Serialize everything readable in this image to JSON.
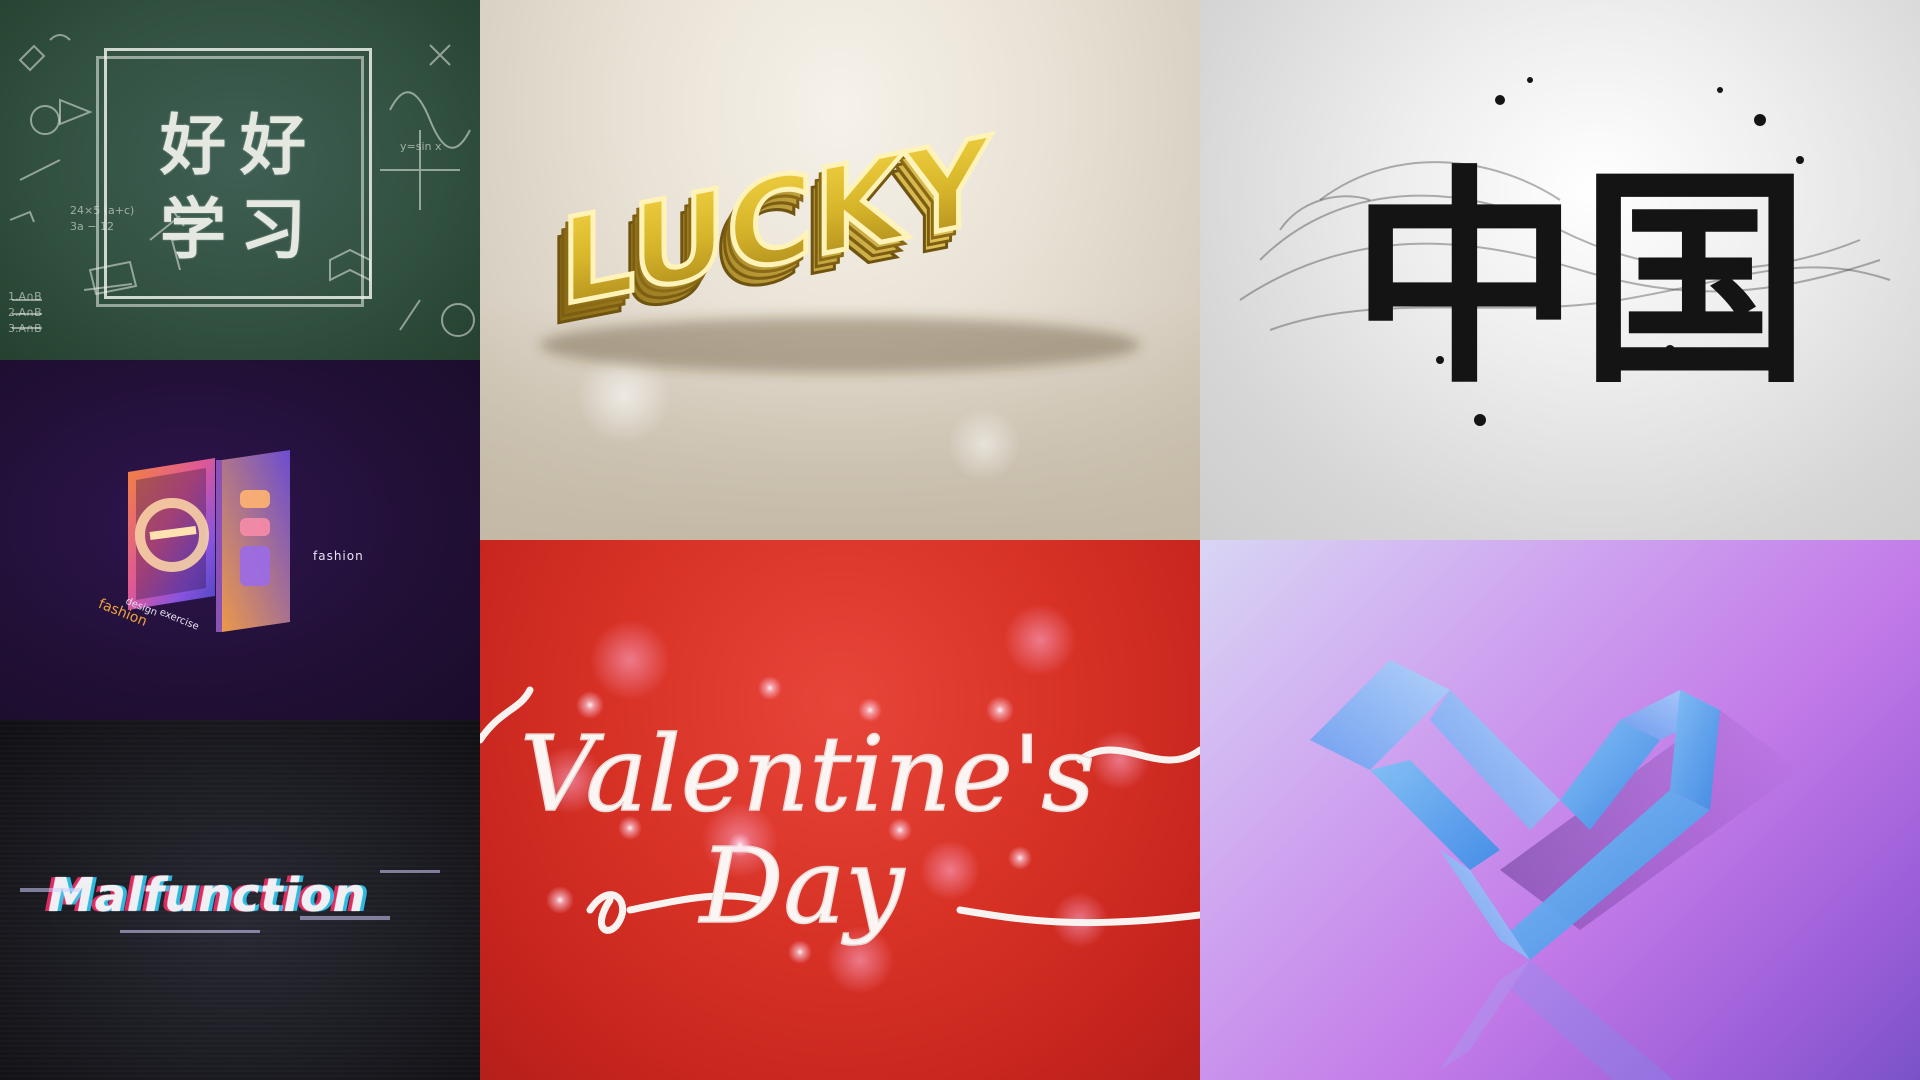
{
  "tiles": {
    "chalkboard": {
      "line1": "好好",
      "line2": "学习"
    },
    "lucky": {
      "word": "LUCKY"
    },
    "china": {
      "characters": "中国"
    },
    "fashion": {
      "label_right": "fashion",
      "word1": "fashion",
      "word2": "design",
      "word3": "exercise"
    },
    "malfunction": {
      "word": "Malfunction"
    },
    "valentine": {
      "line1": "Valentine's",
      "line2": "Day"
    }
  },
  "colors": {
    "chalkboard_bg": "#31503f",
    "lucky_gold": "#d7b52a",
    "china_ink": "#141414",
    "fashion_bg": "#221037",
    "fashion_orange": "#f1a23a",
    "malfunction_bg": "#1d1d24",
    "valentine_red": "#d83226",
    "heart_blue": "#6fb0f0",
    "heart_bg": "#c27ae8"
  }
}
